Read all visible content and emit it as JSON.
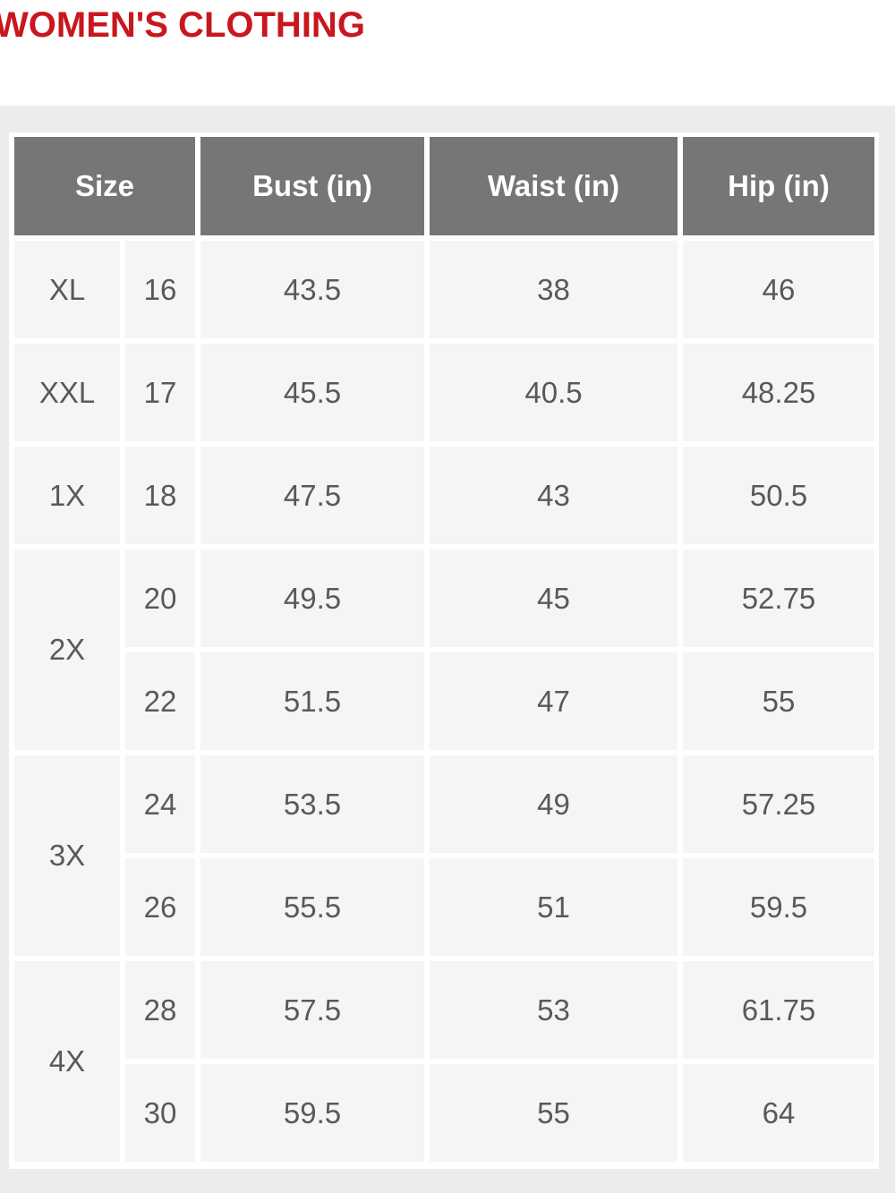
{
  "title": "WOMEN'S CLOTHING",
  "headers": [
    "Size",
    "Bust (in)",
    "Waist (in)",
    "Hip (in)"
  ],
  "groups": [
    {
      "label": "XL",
      "rows": [
        {
          "num": "16",
          "bust": "43.5",
          "waist": "38",
          "hip": "46"
        }
      ]
    },
    {
      "label": "XXL",
      "rows": [
        {
          "num": "17",
          "bust": "45.5",
          "waist": "40.5",
          "hip": "48.25"
        }
      ]
    },
    {
      "label": "1X",
      "rows": [
        {
          "num": "18",
          "bust": "47.5",
          "waist": "43",
          "hip": "50.5"
        }
      ]
    },
    {
      "label": "2X",
      "rows": [
        {
          "num": "20",
          "bust": "49.5",
          "waist": "45",
          "hip": "52.75"
        },
        {
          "num": "22",
          "bust": "51.5",
          "waist": "47",
          "hip": "55"
        }
      ]
    },
    {
      "label": "3X",
      "rows": [
        {
          "num": "24",
          "bust": "53.5",
          "waist": "49",
          "hip": "57.25"
        },
        {
          "num": "26",
          "bust": "55.5",
          "waist": "51",
          "hip": "59.5"
        }
      ]
    },
    {
      "label": "4X",
      "rows": [
        {
          "num": "28",
          "bust": "57.5",
          "waist": "53",
          "hip": "61.75"
        },
        {
          "num": "30",
          "bust": "59.5",
          "waist": "55",
          "hip": "64"
        }
      ]
    }
  ],
  "colors": {
    "title": "#c8171e",
    "header_bg": "#767676",
    "cell_bg": "#f5f5f5",
    "text": "#595959"
  }
}
